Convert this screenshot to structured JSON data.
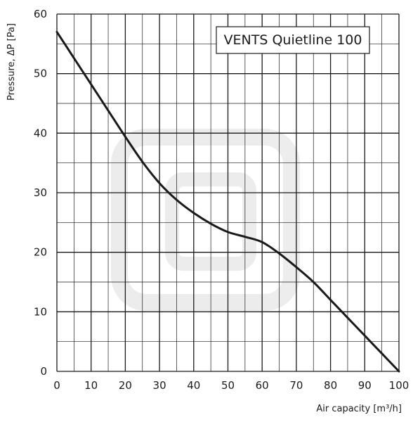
{
  "chart_data": {
    "type": "line",
    "title": "VENTS Quietline 100",
    "xlabel": "Air capacity [m³/h]",
    "ylabel": "Pressure, ΔP [Pa]",
    "xlim": [
      0,
      100
    ],
    "ylim": [
      0,
      60
    ],
    "x_ticks": [
      0,
      10,
      20,
      30,
      40,
      50,
      60,
      70,
      80,
      90,
      100
    ],
    "y_ticks": [
      0,
      10,
      20,
      30,
      40,
      50,
      60
    ],
    "x_minor_step": 5,
    "y_minor_step": 5,
    "grid": true,
    "legend_placement": "top-right",
    "series": [
      {
        "x": [
          0,
          5,
          10,
          15,
          20,
          25,
          30,
          35,
          40,
          45,
          50,
          55,
          60,
          65,
          70,
          75,
          80,
          85,
          90,
          95,
          100
        ],
        "y": [
          57,
          52.6,
          48.2,
          43.8,
          39.4,
          35.2,
          31.6,
          28.8,
          26.6,
          24.8,
          23.4,
          22.6,
          21.7,
          19.8,
          17.5,
          15.0,
          12.0,
          9.0,
          6.0,
          3.0,
          0
        ],
        "color": "#1a1a1a"
      }
    ]
  }
}
